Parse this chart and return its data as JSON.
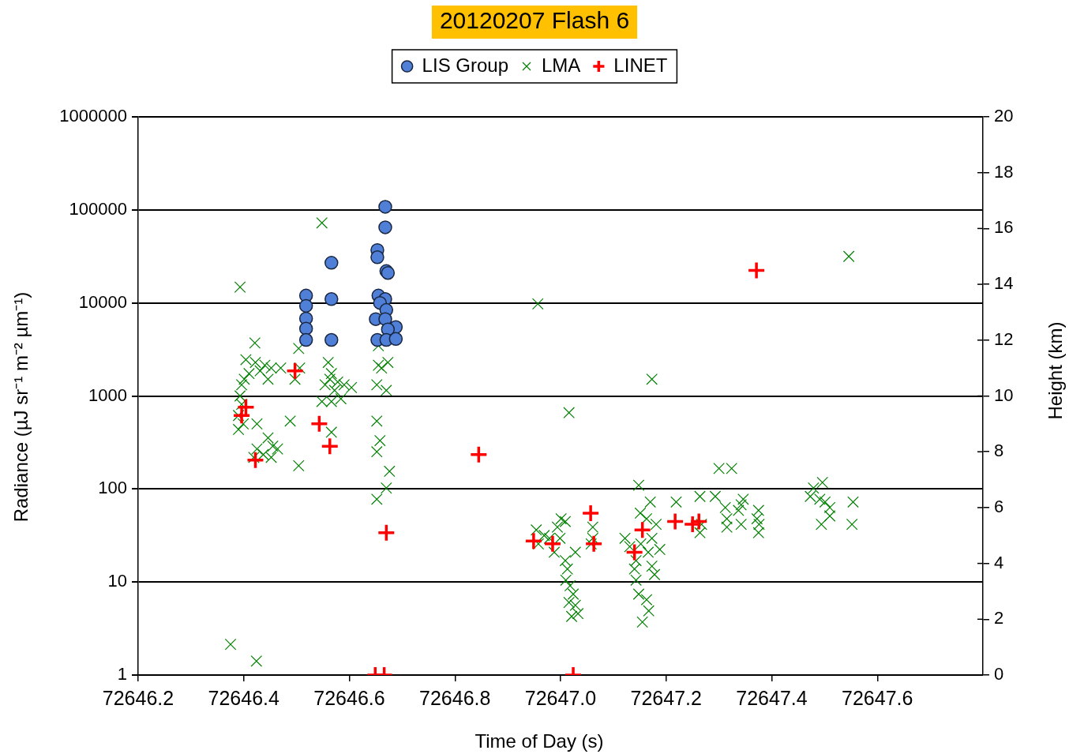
{
  "chart_data": {
    "type": "scatter",
    "title": "20120207 Flash 6",
    "xlabel": "Time of Day (s)",
    "ylabel": "Radiance (µJ sr⁻¹ m⁻² µm⁻¹)",
    "y2label": "Height (km)",
    "xlim": [
      72646.2,
      72647.8
    ],
    "xticks": [
      72646.2,
      72646.4,
      72646.6,
      72646.8,
      {
        "value": 72647,
        "label": "72647.0"
      },
      72647.2,
      72647.4,
      72647.6
    ],
    "ylim": [
      1,
      1000000
    ],
    "yticks": [
      1,
      10,
      100,
      1000,
      10000,
      100000,
      1000000
    ],
    "log": "y",
    "y2lim": [
      0,
      20
    ],
    "y2ticks": [
      0,
      2,
      4,
      6,
      8,
      10,
      12,
      14,
      16,
      18,
      20
    ],
    "grid": "y",
    "legend": "top",
    "series": [
      {
        "name": "LIS Group",
        "color": "#4f7fd6",
        "marker": "circle",
        "x": [
          72646.518,
          72646.518,
          72646.518,
          72646.518,
          72646.518,
          72646.566,
          72646.566,
          72646.566,
          72646.668,
          72646.668,
          72646.653,
          72646.653,
          72646.67,
          72646.673,
          72646.655,
          72646.668,
          72646.658,
          72646.67,
          72646.65,
          72646.668,
          72646.688,
          72646.673,
          72646.653,
          72646.67,
          72646.688
        ],
        "values": [
          12000,
          9300,
          6800,
          5300,
          4000,
          27000,
          11000,
          4000,
          108000,
          65000,
          37000,
          31000,
          22000,
          21000,
          12000,
          11000,
          10000,
          8400,
          6700,
          6700,
          5500,
          5200,
          4000,
          4000,
          4100
        ]
      },
      {
        "name": "LMA",
        "color": "#008000",
        "marker": "x",
        "axis": "y2",
        "x": [
          72646.375,
          72646.424,
          72646.393,
          72646.548,
          72646.957,
          72647.016,
          72647.173,
          72647.546,
          72646.421,
          72646.404,
          72646.422,
          72646.44,
          72646.452,
          72646.47,
          72646.401,
          72646.41,
          72646.446,
          72646.431,
          72646.396,
          72646.393,
          72646.396,
          72646.39,
          72646.39,
          72646.399,
          72646.425,
          72646.488,
          72646.446,
          72646.455,
          72646.464,
          72646.425,
          72646.437,
          72646.452,
          72646.419,
          72646.504,
          72646.504,
          72646.506,
          72646.497,
          72646.56,
          72646.566,
          72646.578,
          72646.554,
          72646.572,
          72646.59,
          72646.566,
          72646.548,
          72646.584,
          72646.604,
          72646.563,
          72646.566,
          72646.655,
          72646.655,
          72646.673,
          72646.661,
          72646.652,
          72646.67,
          72646.652,
          72646.658,
          72646.652,
          72646.676,
          72646.67,
          72646.652,
          72646.954,
          72646.969,
          72646.958,
          72646.979,
          72646.994,
          72647.001,
          72647.009,
          72646.988,
          72647.028,
          72646.999,
          72647.009,
          72647.013,
          72647.01,
          72647.018,
          72647.024,
          72647.016,
          72647.028,
          72647.021,
          72647.033,
          72647.061,
          72647.061,
          72647.058,
          72647.148,
          72647.17,
          72647.151,
          72647.163,
          72647.181,
          72647.122,
          72647.131,
          72647.152,
          72647.173,
          72647.166,
          72647.188,
          72647.143,
          72647.173,
          72647.14,
          72647.178,
          72647.143,
          72647.148,
          72647.163,
          72647.167,
          72647.155,
          72647.219,
          72647.3,
          72647.324,
          72647.264,
          72647.293,
          72647.267,
          72647.264,
          72647.312,
          72647.342,
          72647.337,
          72647.315,
          72647.342,
          72647.315,
          72647.375,
          72647.376,
          72647.375,
          72647.346,
          72647.372,
          72647.479,
          72647.496,
          72647.473,
          72647.501,
          72647.51,
          72647.491,
          72647.494,
          72647.51,
          72647.554,
          72647.552
        ],
        "values": [
          1.1,
          0.5,
          13.9,
          16.2,
          13.3,
          9.4,
          10.6,
          15.0,
          11.9,
          11.3,
          11.2,
          11.1,
          11.0,
          11.0,
          10.6,
          10.8,
          10.6,
          10.9,
          10.4,
          10.0,
          9.7,
          9.3,
          8.8,
          9.0,
          9.0,
          9.1,
          8.5,
          8.2,
          8.1,
          8.1,
          7.9,
          7.8,
          7.8,
          7.5,
          11.7,
          11.0,
          10.6,
          11.2,
          10.8,
          10.5,
          10.4,
          10.2,
          10.4,
          9.8,
          9.8,
          9.9,
          10.3,
          10.6,
          8.7,
          11.8,
          11.1,
          11.2,
          11.0,
          10.4,
          10.2,
          9.1,
          8.4,
          8.0,
          7.3,
          6.7,
          6.3,
          5.2,
          5.0,
          4.7,
          4.9,
          5.3,
          5.6,
          5.5,
          4.4,
          4.4,
          4.9,
          4.1,
          3.8,
          3.4,
          3.2,
          2.9,
          2.6,
          2.5,
          2.1,
          2.2,
          5.3,
          4.9,
          4.7,
          6.8,
          6.2,
          5.8,
          5.6,
          5.4,
          4.9,
          4.6,
          4.7,
          4.9,
          4.4,
          4.5,
          4.1,
          3.9,
          3.8,
          3.6,
          3.4,
          2.9,
          2.7,
          2.3,
          1.9,
          6.2,
          7.4,
          7.4,
          6.4,
          6.4,
          5.4,
          5.1,
          6.0,
          6.1,
          5.9,
          5.6,
          5.4,
          5.3,
          5.9,
          5.4,
          5.1,
          6.3,
          5.6,
          6.7,
          6.9,
          6.4,
          6.2,
          6.0,
          6.3,
          5.4,
          5.7,
          6.2,
          5.4
        ]
      },
      {
        "name": "LINET",
        "color": "#ff0000",
        "marker": "cross",
        "axis": "y2",
        "x": [
          72646.396,
          72646.404,
          72646.422,
          72646.497,
          72646.543,
          72646.563,
          72646.67,
          72646.649,
          72646.666,
          72646.845,
          72646.949,
          72646.985,
          72647.057,
          72647.063,
          72647.024,
          72647.155,
          72647.14,
          72647.217,
          72647.25,
          72647.262,
          72647.371
        ],
        "values": [
          9.3,
          9.6,
          7.7,
          10.9,
          9.0,
          8.2,
          5.1,
          0,
          0,
          7.9,
          4.8,
          4.7,
          5.8,
          4.7,
          0,
          5.2,
          4.4,
          5.5,
          5.4,
          5.5,
          14.5
        ]
      }
    ]
  }
}
